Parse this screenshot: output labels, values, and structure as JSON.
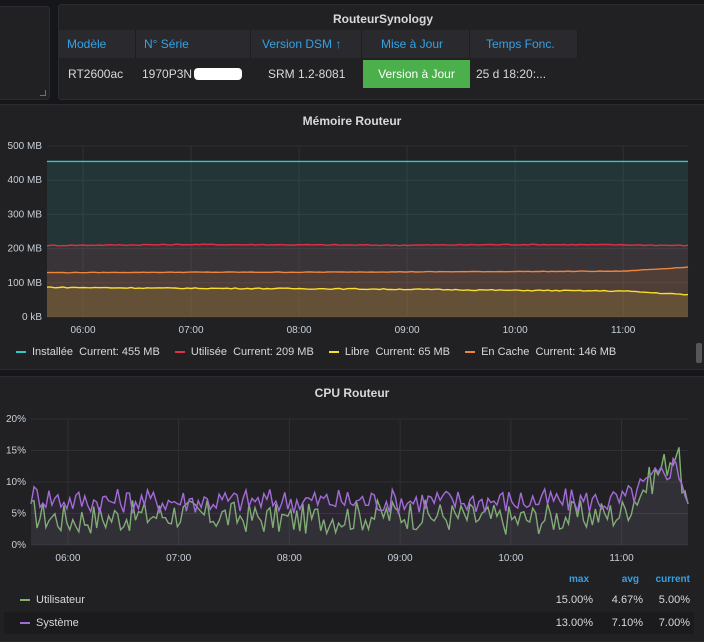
{
  "table_panel": {
    "title": "RouteurSynology",
    "columns": [
      "Modèle",
      "N° Série",
      "Version DSM ↑",
      "Mise à Jour",
      "Temps Fonc."
    ],
    "row": {
      "model": "RT2600ac",
      "serial": "1970P3N",
      "dsm_version": "SRM 1.2-8081",
      "update_status": "Version à Jour",
      "uptime": "25 d 18:20:..."
    },
    "status_color": "#4bb04b",
    "header_color": "#33a2e5"
  },
  "memory_panel": {
    "title": "Mémoire Routeur",
    "legend": [
      {
        "name": "Installée",
        "current": "Current: 455 MB",
        "color": "#2ec9c6"
      },
      {
        "name": "Utilisée",
        "current": "Current: 209 MB",
        "color": "#e02f44"
      },
      {
        "name": "Libre",
        "current": "Current: 65 MB",
        "color": "#fade2a"
      },
      {
        "name": "En Cache",
        "current": "Current: 146 MB",
        "color": "#ef843c"
      }
    ]
  },
  "cpu_panel": {
    "title": "CPU Routeur",
    "legend_headers": {
      "max": "max",
      "avg": "avg",
      "current": "current"
    },
    "legend_rows": [
      {
        "name": "Utilisateur",
        "color": "#7eb26d",
        "max": "15.00%",
        "avg": "4.67%",
        "current": "5.00%"
      },
      {
        "name": "Système",
        "color": "#a36bd8",
        "max": "13.00%",
        "avg": "7.10%",
        "current": "7.00%"
      }
    ]
  },
  "chart_data": [
    {
      "type": "area",
      "title": "Mémoire Routeur",
      "x": [
        "05:40",
        "06:00",
        "07:00",
        "08:00",
        "09:00",
        "10:00",
        "11:00",
        "11:36"
      ],
      "x_ticks": [
        "06:00",
        "07:00",
        "08:00",
        "09:00",
        "10:00",
        "11:00"
      ],
      "y_ticks": [
        "0 kB",
        "100 MB",
        "200 MB",
        "300 MB",
        "400 MB",
        "500 MB"
      ],
      "ylim": [
        0,
        500
      ],
      "unit": "MB",
      "series": [
        {
          "name": "Installée",
          "color": "#2ec9c6",
          "values": [
            455,
            455,
            455,
            455,
            455,
            455,
            455,
            455
          ]
        },
        {
          "name": "Utilisée",
          "color": "#e02f44",
          "values": [
            209,
            210,
            212,
            211,
            210,
            212,
            211,
            209
          ]
        },
        {
          "name": "En Cache",
          "color": "#ef843c",
          "values": [
            130,
            130,
            131,
            131,
            132,
            133,
            134,
            146
          ]
        },
        {
          "name": "Libre",
          "color": "#fade2a",
          "values": [
            87,
            86,
            84,
            83,
            81,
            78,
            76,
            65
          ]
        }
      ],
      "grid": true
    },
    {
      "type": "line",
      "title": "CPU Routeur",
      "x": [
        "05:40",
        "06:00",
        "07:00",
        "08:00",
        "09:00",
        "10:00",
        "11:00",
        "11:30",
        "11:36"
      ],
      "x_ticks": [
        "06:00",
        "07:00",
        "08:00",
        "09:00",
        "10:00",
        "11:00"
      ],
      "y_ticks": [
        "0%",
        "5%",
        "10%",
        "15%",
        "20%"
      ],
      "ylim": [
        0,
        20
      ],
      "unit": "%",
      "series": [
        {
          "name": "Utilisateur",
          "color": "#7eb26d",
          "values": [
            5,
            4,
            5,
            4,
            5,
            4,
            5,
            15,
            5
          ]
        },
        {
          "name": "Système",
          "color": "#a36bd8",
          "values": [
            8,
            7,
            7,
            7,
            7,
            7,
            7,
            13,
            7
          ]
        }
      ],
      "grid": true
    }
  ]
}
